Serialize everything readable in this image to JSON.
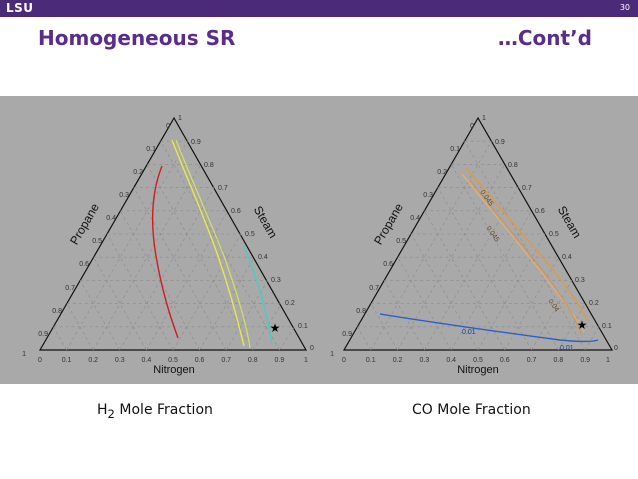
{
  "header": {
    "logo": "LSU",
    "page_number": "30"
  },
  "slide": {
    "title": "Homogeneous SR",
    "subtitle": "…Cont’d"
  },
  "colors": {
    "bar": "#4b2a7a",
    "title": "#5a2d8c",
    "panel": "#a9a9a9"
  },
  "left_plot": {
    "caption_main": "H",
    "caption_sub": "2",
    "caption_rest": " Mole Fraction",
    "axis_left": "Propane",
    "axis_right": "Steam",
    "axis_bottom": "Nitrogen",
    "ticks_bottom": [
      "0",
      "0.1",
      "0.2",
      "0.3",
      "0.4",
      "0.5",
      "0.6",
      "0.7",
      "0.8",
      "0.9",
      "1"
    ],
    "ticks_left": [
      "0",
      "0.1",
      "0.2",
      "0.3",
      "0.4",
      "0.5",
      "0.6",
      "0.7",
      "0.8",
      "0.9",
      "1"
    ],
    "ticks_right": [
      "1",
      "0.9",
      "0.8",
      "0.7",
      "0.6",
      "0.5",
      "0.4",
      "0.3",
      "0.2",
      "0.1",
      "0"
    ]
  },
  "right_plot": {
    "caption": "CO Mole Fraction",
    "axis_left": "Propane",
    "axis_right": "Steam",
    "axis_bottom": "Nitrogen",
    "ticks_bottom": [
      "0",
      "0.1",
      "0.2",
      "0.3",
      "0.4",
      "0.5",
      "0.6",
      "0.7",
      "0.8",
      "0.9",
      "1"
    ],
    "ticks_left": [
      "0",
      "0.1",
      "0.2",
      "0.3",
      "0.4",
      "0.5",
      "0.6",
      "0.7",
      "0.8",
      "0.9",
      "1"
    ],
    "ticks_right": [
      "1",
      "0.9",
      "0.8",
      "0.7",
      "0.6",
      "0.5",
      "0.4",
      "0.3",
      "0.2",
      "0.1",
      "0"
    ],
    "contour_labels": [
      "0.045",
      "0.045",
      "0.04",
      "0.01",
      "0.01"
    ]
  }
}
